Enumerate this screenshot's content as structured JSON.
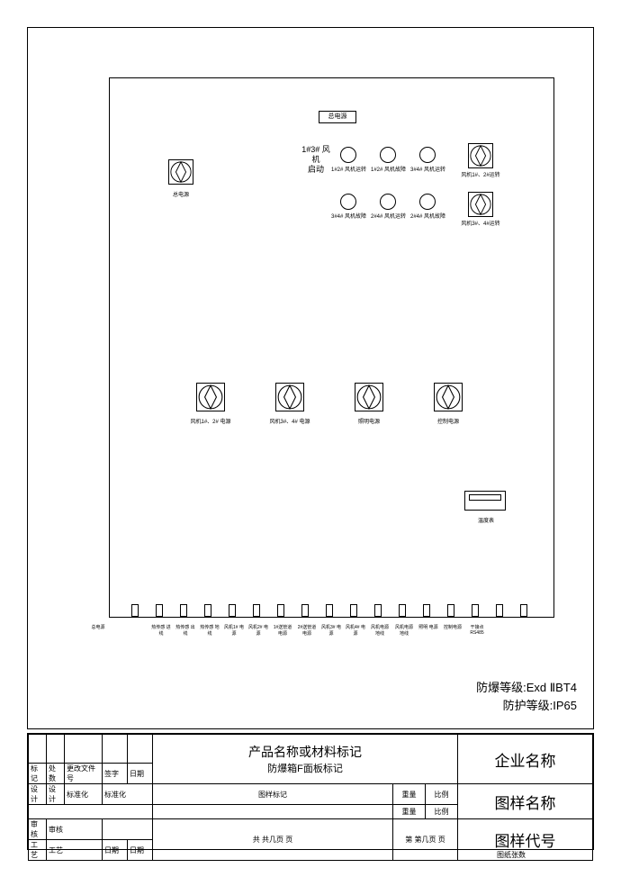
{
  "main_power_label": "总电源",
  "fan_start_text": "1#3# 风\n机\n启动",
  "top_switch_label": "总电源",
  "right_sw1_label": "风机1#、2#运转",
  "right_sw2_label": "风机3#、4#运转",
  "ind_labels": [
    "1#2# 风机运转",
    "1#2# 风机故障",
    "3#4# 风机运转",
    "3#4# 风机故障",
    "2#4# 风机运转",
    "2#4# 风机故障"
  ],
  "mid_sw_labels": [
    "风机1#、2# 电源",
    "风机3#、4# 电源",
    "照明电源",
    "控制电源"
  ],
  "display_label": "温度表",
  "left_term_label": "总电源",
  "bottom_terms": [
    "热传感 进线",
    "热传感 出线",
    "热传感 地线",
    "风机1# 电源",
    "风机2# 电源",
    "1#送管道 电源",
    "2#送管道 电源",
    "风机3# 电源",
    "风机4# 电源",
    "风机电源 地线",
    "风机电源 地线",
    "照明 电源",
    "控制电源",
    "干接点 RS485"
  ],
  "spec1": "防爆等级:Exd ⅡBT4",
  "spec2": "防护等级:IP65",
  "title_overlap": "产品名称或材料标记",
  "title_sub": "防爆箱F面板标记",
  "tb": {
    "biaoji": "标记",
    "chushu": "处数",
    "genggai": "更改文件号",
    "qianzi": "签字",
    "riqi": "日期",
    "sheji": "设计",
    "biaozhunhua": "标准化",
    "tuyang_biaoji": "图样标记",
    "zhongliang": "重量",
    "bili": "比例",
    "shenhe": "审核",
    "gongyi": "工艺",
    "gong": "共 共几页 页",
    "di": "第 第几页 页",
    "qiye": "企业名称",
    "tuyang_name": "图样名称",
    "tuyang_code": "图样代号",
    "tuzhi": "图纸张数"
  }
}
